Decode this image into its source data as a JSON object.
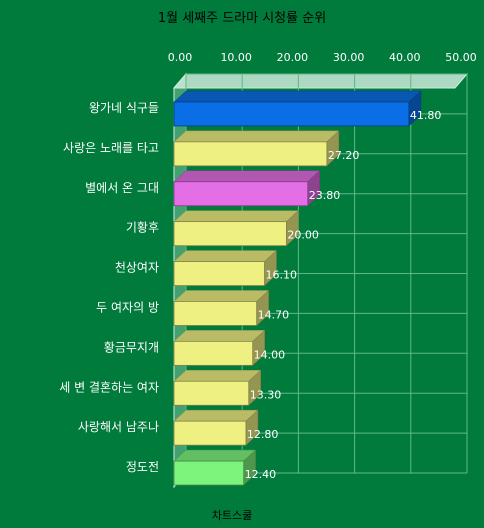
{
  "chart_data": {
    "type": "bar",
    "orientation": "horizontal",
    "title": "1월 세째주 드라마 시청률 순위",
    "footer": "차트스쿨",
    "categories": [
      "왕가네 식구들",
      "사랑은 노래를 타고",
      "별에서 온 그대",
      "기황후",
      "천상여자",
      "두 여자의 방",
      "황금무지개",
      "세 변 결혼하는 여자",
      "사랑해서 남주나",
      "정도전"
    ],
    "values": [
      41.8,
      27.2,
      23.8,
      20.0,
      16.1,
      14.7,
      14.0,
      13.3,
      12.8,
      12.4
    ],
    "value_labels": [
      "41.80",
      "27.20",
      "23.80",
      "20.00",
      "16.10",
      "14.70",
      "14.00",
      "13.30",
      "12.80",
      "12.40"
    ],
    "tick_labels": [
      "0.00",
      "10.00",
      "20.00",
      "30.00",
      "40.00",
      "50.00"
    ],
    "xlim": [
      0,
      50
    ],
    "grid": true,
    "axis_position": "top",
    "bar_colors": [
      "#0a6fe6",
      "#eef082",
      "#e46ee6",
      "#eef082",
      "#eef082",
      "#eef082",
      "#eef082",
      "#eef082",
      "#eef082",
      "#7df57d"
    ]
  }
}
